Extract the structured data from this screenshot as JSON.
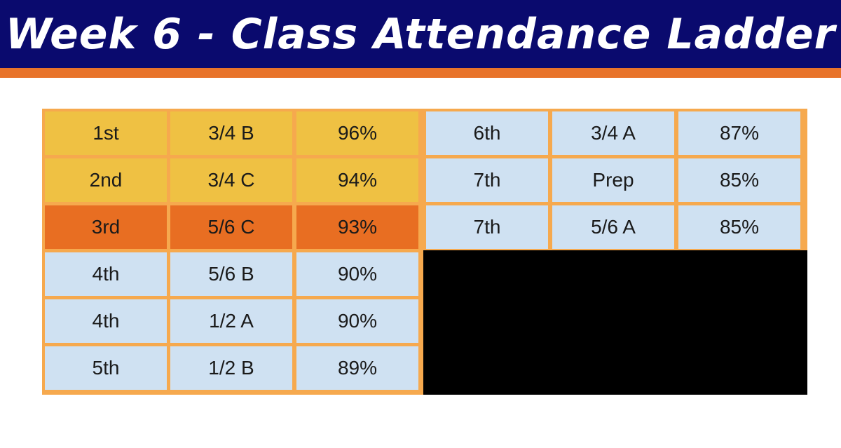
{
  "title": "Week 6 - Class Attendance Ladder",
  "colors": {
    "header_bg": "#0a0a6e",
    "header_stripe": "#e8732a",
    "grid_border": "#f6a94e",
    "gold": "#efc143",
    "orange": "#e86e22",
    "blue": "#cfe1f2",
    "redacted": "#000000"
  },
  "rows": [
    {
      "rank": "1st",
      "class": "3/4 B",
      "attendance": "96%",
      "highlight": "gold"
    },
    {
      "rank": "2nd",
      "class": "3/4 C",
      "attendance": "94%",
      "highlight": "gold"
    },
    {
      "rank": "3rd",
      "class": "5/6 C",
      "attendance": "93%",
      "highlight": "orange"
    },
    {
      "rank": "4th",
      "class": "5/6 B",
      "attendance": "90%",
      "highlight": "blue"
    },
    {
      "rank": "4th",
      "class": "1/2 A",
      "attendance": "90%",
      "highlight": "blue"
    },
    {
      "rank": "5th",
      "class": "1/2 B",
      "attendance": "89%",
      "highlight": "blue"
    },
    {
      "rank": "6th",
      "class": "3/4 A",
      "attendance": "87%",
      "highlight": "blue"
    },
    {
      "rank": "7th",
      "class": "Prep",
      "attendance": "85%",
      "highlight": "blue"
    },
    {
      "rank": "7th",
      "class": "5/6 A",
      "attendance": "85%",
      "highlight": "blue"
    }
  ]
}
